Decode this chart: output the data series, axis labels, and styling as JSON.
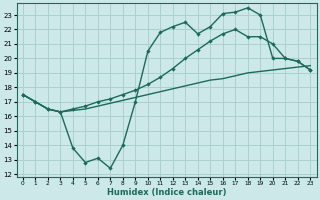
{
  "xlabel": "Humidex (Indice chaleur)",
  "bg_color": "#cce8e8",
  "grid_color": "#aad0d0",
  "line_color": "#1a6b5a",
  "xlim": [
    -0.5,
    23.5
  ],
  "ylim": [
    11.8,
    23.8
  ],
  "yticks": [
    12,
    13,
    14,
    15,
    16,
    17,
    18,
    19,
    20,
    21,
    22,
    23
  ],
  "xticks": [
    0,
    1,
    2,
    3,
    4,
    5,
    6,
    7,
    8,
    9,
    10,
    11,
    12,
    13,
    14,
    15,
    16,
    17,
    18,
    19,
    20,
    21,
    22,
    23
  ],
  "line1_x": [
    0,
    1,
    2,
    3,
    4,
    5,
    6,
    7,
    8,
    9,
    10,
    11,
    12,
    13,
    14,
    15,
    16,
    17,
    18,
    19,
    20,
    21,
    22,
    23
  ],
  "line1_y": [
    17.5,
    17.0,
    16.5,
    16.3,
    13.8,
    12.8,
    13.1,
    12.4,
    14.0,
    17.0,
    20.5,
    21.8,
    22.2,
    22.5,
    21.7,
    22.2,
    23.1,
    23.2,
    23.5,
    23.0,
    20.0,
    20.0,
    19.8,
    19.2
  ],
  "line2_x": [
    0,
    1,
    2,
    3,
    4,
    5,
    6,
    7,
    8,
    9,
    10,
    11,
    12,
    13,
    14,
    15,
    16,
    17,
    18,
    19,
    20,
    21,
    22,
    23
  ],
  "line2_y": [
    17.5,
    17.0,
    16.5,
    16.3,
    16.4,
    16.5,
    16.7,
    16.9,
    17.1,
    17.3,
    17.5,
    17.7,
    17.9,
    18.1,
    18.3,
    18.5,
    18.6,
    18.8,
    19.0,
    19.1,
    19.2,
    19.3,
    19.4,
    19.5
  ],
  "line3_x": [
    0,
    1,
    2,
    3,
    4,
    5,
    6,
    7,
    8,
    9,
    10,
    11,
    12,
    13,
    14,
    15,
    16,
    17,
    18,
    19,
    20,
    21,
    22,
    23
  ],
  "line3_y": [
    17.5,
    17.0,
    16.5,
    16.3,
    16.5,
    16.7,
    17.0,
    17.2,
    17.5,
    17.8,
    18.2,
    18.7,
    19.3,
    20.0,
    20.6,
    21.2,
    21.7,
    22.0,
    21.5,
    21.5,
    21.0,
    20.0,
    19.8,
    19.2
  ]
}
